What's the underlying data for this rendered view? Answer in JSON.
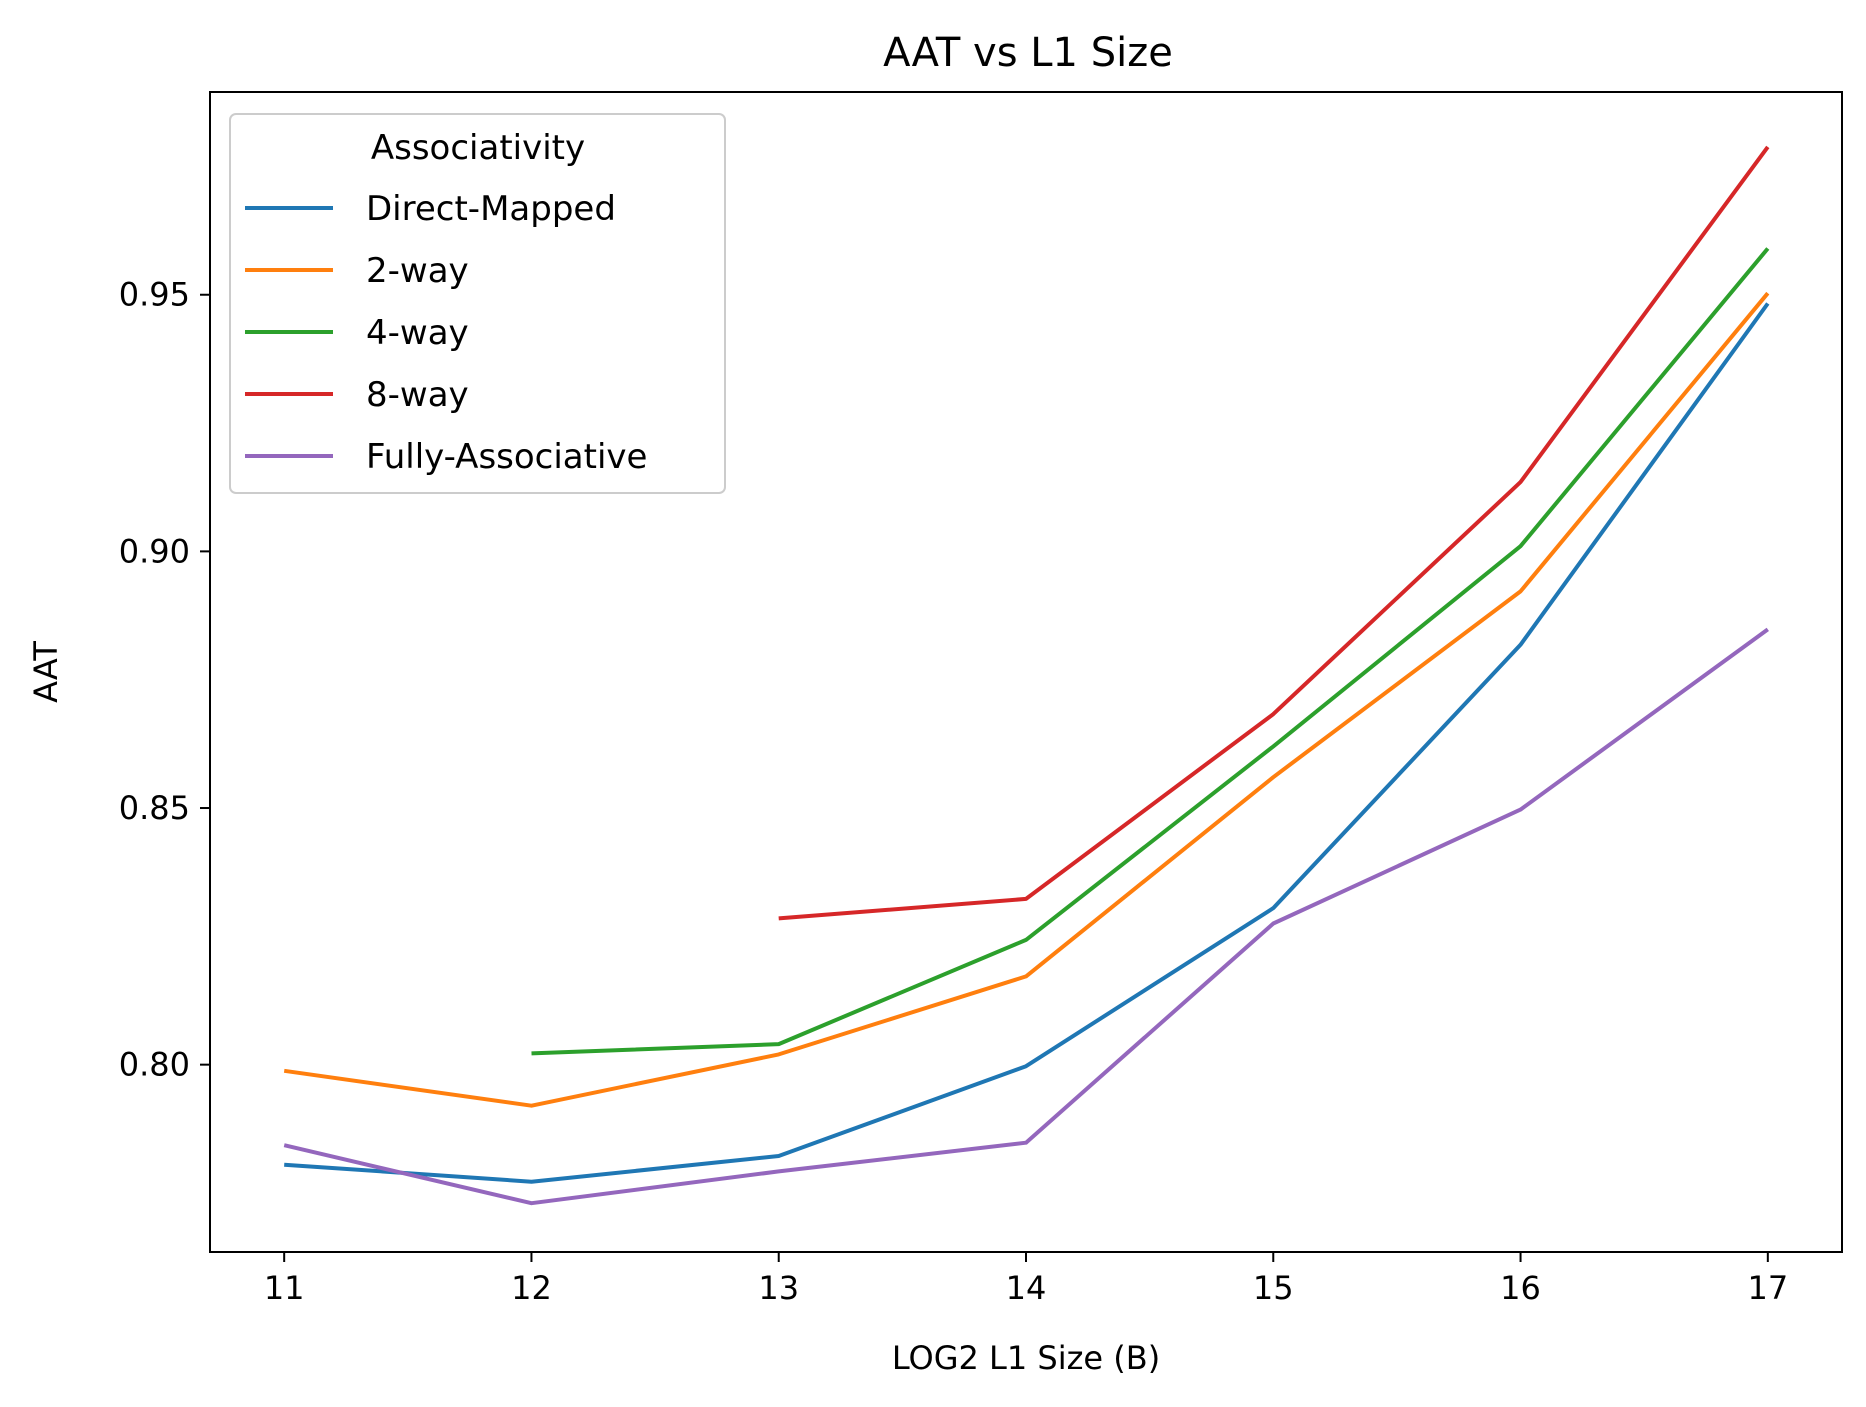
{
  "chart_data": {
    "type": "line",
    "title": "AAT vs L1 Size",
    "xlabel": "LOG2 L1 Size (B)",
    "ylabel": "AAT",
    "xlim": [
      10.7,
      17.3
    ],
    "ylim": [
      0.7635,
      0.9895
    ],
    "x_ticks": [
      11,
      12,
      13,
      14,
      15,
      16,
      17
    ],
    "x_tick_labels": [
      "11",
      "12",
      "13",
      "14",
      "15",
      "16",
      "17"
    ],
    "y_ticks": [
      0.8,
      0.85,
      0.9,
      0.95
    ],
    "y_tick_labels": [
      "0.80",
      "0.85",
      "0.90",
      "0.95"
    ],
    "grid": false,
    "legend": {
      "title": "Associativity",
      "placement": "upper left"
    },
    "series": [
      {
        "name": "Direct-Mapped",
        "color": "#1f77b4",
        "points": [
          [
            11,
            0.7805
          ],
          [
            12,
            0.7772
          ],
          [
            13,
            0.7822
          ],
          [
            14,
            0.7997
          ],
          [
            15,
            0.8305
          ],
          [
            16,
            0.8818
          ],
          [
            17,
            0.9483
          ]
        ]
      },
      {
        "name": "2-way",
        "color": "#ff7f0e",
        "points": [
          [
            11,
            0.7988
          ],
          [
            12,
            0.792
          ],
          [
            13,
            0.802
          ],
          [
            14,
            0.8172
          ],
          [
            15,
            0.856
          ],
          [
            16,
            0.8922
          ],
          [
            17,
            0.9503
          ]
        ]
      },
      {
        "name": "4-way",
        "color": "#2ca02c",
        "points": [
          [
            12,
            0.8022
          ],
          [
            13,
            0.804
          ],
          [
            14,
            0.8243
          ],
          [
            15,
            0.862
          ],
          [
            16,
            0.901
          ],
          [
            17,
            0.959
          ]
        ]
      },
      {
        "name": "8-way",
        "color": "#d62728",
        "points": [
          [
            13,
            0.8285
          ],
          [
            14,
            0.8323
          ],
          [
            15,
            0.8683
          ],
          [
            16,
            0.9135
          ],
          [
            17,
            0.9788
          ]
        ]
      },
      {
        "name": "Fully-Associative",
        "color": "#9467bd",
        "points": [
          [
            11,
            0.7843
          ],
          [
            12,
            0.773
          ],
          [
            13,
            0.7792
          ],
          [
            14,
            0.7848
          ],
          [
            15,
            0.8275
          ],
          [
            16,
            0.8497
          ],
          [
            17,
            0.8848
          ]
        ]
      }
    ]
  }
}
